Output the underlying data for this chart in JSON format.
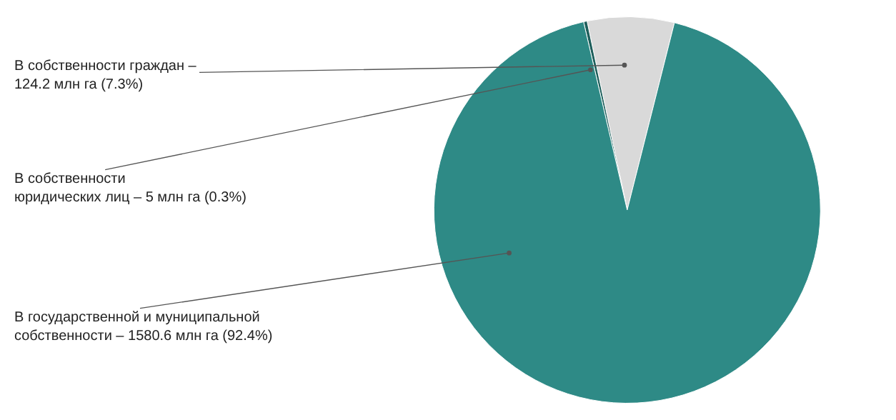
{
  "chart_data": {
    "type": "pie",
    "categories": [
      "В собственности граждан –\n124.2 млн га (7.3%)",
      "В собственности\nюридических лиц – 5 млн га (0.3%)",
      "В государственной и муниципальной\nсобственности – 1580.6 млн га (92.4%)"
    ],
    "values": [
      124.2,
      5,
      1580.6
    ],
    "colors": [
      "#d9d9d9",
      "#1f5f5c",
      "#2e8a86"
    ],
    "legend": false
  }
}
